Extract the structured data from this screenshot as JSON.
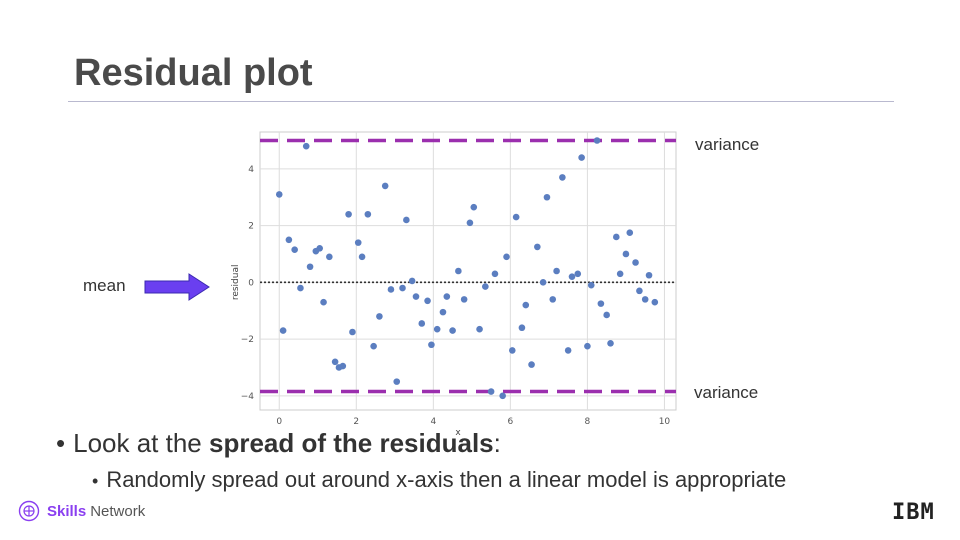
{
  "slide": {
    "title": "Residual plot",
    "annotations": {
      "variance_top": "variance",
      "variance_bottom": "variance",
      "mean": "mean"
    },
    "bullet1": {
      "prefix": "Look at the ",
      "bold": "spread of the residuals",
      "suffix": ":"
    },
    "bullet2": "Randomly spread out around x-axis then a linear model is appropriate",
    "footer": {
      "brand_bold": "Skills",
      "brand_rest": "Network",
      "ibm": "IBM"
    },
    "colors": {
      "points": "#5b7ec0",
      "variance_lines": "#9b2fae",
      "arrow": "#6a3ff0",
      "title": "#4a4a4a"
    }
  },
  "chart_data": {
    "type": "scatter",
    "xlabel": "x",
    "ylabel": "residual",
    "xlim": [
      -0.5,
      10.3
    ],
    "ylim": [
      -4.5,
      5.3
    ],
    "xticks": [
      0,
      2,
      4,
      6,
      8,
      10
    ],
    "yticks": [
      -4,
      -2,
      0,
      2,
      4
    ],
    "grid": true,
    "mean_line": 0,
    "variance_lines": [
      5.0,
      -3.85
    ],
    "points": [
      [
        0.0,
        3.1
      ],
      [
        0.1,
        -1.7
      ],
      [
        0.25,
        1.5
      ],
      [
        0.4,
        1.15
      ],
      [
        0.55,
        -0.2
      ],
      [
        0.7,
        4.8
      ],
      [
        0.8,
        0.55
      ],
      [
        0.95,
        1.1
      ],
      [
        1.05,
        1.2
      ],
      [
        1.15,
        -0.7
      ],
      [
        1.3,
        0.9
      ],
      [
        1.45,
        -2.8
      ],
      [
        1.55,
        -3.0
      ],
      [
        1.65,
        -2.95
      ],
      [
        1.8,
        2.4
      ],
      [
        1.9,
        -1.75
      ],
      [
        2.05,
        1.4
      ],
      [
        2.15,
        0.9
      ],
      [
        2.3,
        2.4
      ],
      [
        2.45,
        -2.25
      ],
      [
        2.6,
        -1.2
      ],
      [
        2.75,
        3.4
      ],
      [
        2.9,
        -0.25
      ],
      [
        3.05,
        -3.5
      ],
      [
        3.2,
        -0.2
      ],
      [
        3.3,
        2.2
      ],
      [
        3.45,
        0.05
      ],
      [
        3.55,
        -0.5
      ],
      [
        3.7,
        -1.45
      ],
      [
        3.85,
        -0.65
      ],
      [
        3.95,
        -2.2
      ],
      [
        4.1,
        -1.65
      ],
      [
        4.25,
        -1.05
      ],
      [
        4.35,
        -0.5
      ],
      [
        4.5,
        -1.7
      ],
      [
        4.65,
        0.4
      ],
      [
        4.8,
        -0.6
      ],
      [
        4.95,
        2.1
      ],
      [
        5.05,
        2.65
      ],
      [
        5.2,
        -1.65
      ],
      [
        5.35,
        -0.15
      ],
      [
        5.5,
        -3.85
      ],
      [
        5.6,
        0.3
      ],
      [
        5.8,
        -4.0
      ],
      [
        5.9,
        0.9
      ],
      [
        6.05,
        -2.4
      ],
      [
        6.15,
        2.3
      ],
      [
        6.3,
        -1.6
      ],
      [
        6.4,
        -0.8
      ],
      [
        6.55,
        -2.9
      ],
      [
        6.7,
        1.25
      ],
      [
        6.85,
        0.0
      ],
      [
        6.95,
        3.0
      ],
      [
        7.1,
        -0.6
      ],
      [
        7.2,
        0.4
      ],
      [
        7.35,
        3.7
      ],
      [
        7.5,
        -2.4
      ],
      [
        7.6,
        0.2
      ],
      [
        7.75,
        0.3
      ],
      [
        7.85,
        4.4
      ],
      [
        8.0,
        -2.25
      ],
      [
        8.1,
        -0.1
      ],
      [
        8.25,
        5.0
      ],
      [
        8.35,
        -0.75
      ],
      [
        8.5,
        -1.15
      ],
      [
        8.6,
        -2.15
      ],
      [
        8.75,
        1.6
      ],
      [
        8.85,
        0.3
      ],
      [
        9.0,
        1.0
      ],
      [
        9.1,
        1.75
      ],
      [
        9.25,
        0.7
      ],
      [
        9.35,
        -0.3
      ],
      [
        9.5,
        -0.6
      ],
      [
        9.6,
        0.25
      ],
      [
        9.75,
        -0.7
      ]
    ]
  }
}
